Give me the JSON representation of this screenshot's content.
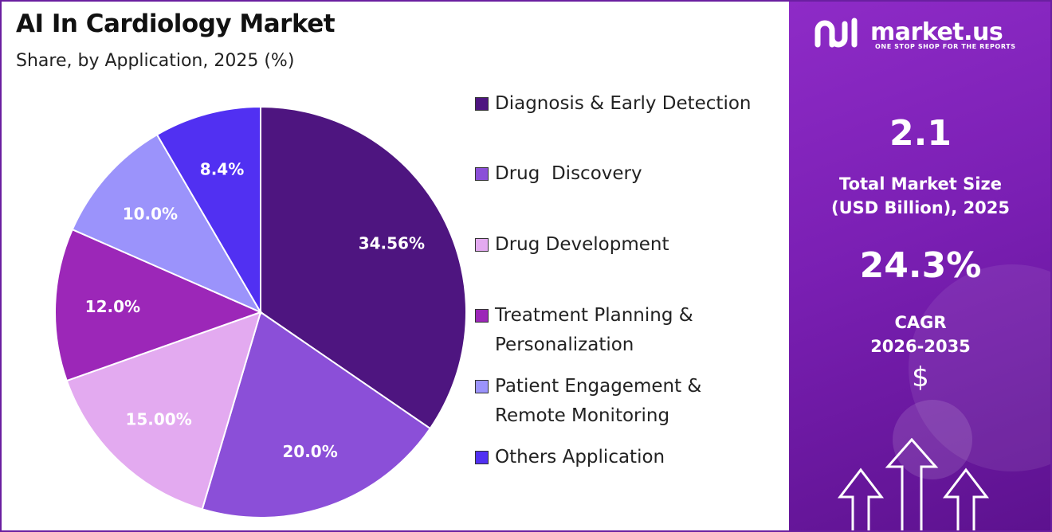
{
  "header": {
    "title": "AI In Cardiology Market",
    "subtitle": "Share, by Application, 2025 (%)"
  },
  "chart_data": {
    "type": "pie",
    "title": "AI In Cardiology Market",
    "subtitle": "Share, by Application, 2025 (%)",
    "slices": [
      {
        "label": "Diagnosis & Early Detection",
        "value": 34.56,
        "display": "34.56%",
        "color": "#4e1580"
      },
      {
        "label": "Drug  Discovery",
        "value": 20.0,
        "display": "20.0%",
        "color": "#8b4fd8"
      },
      {
        "label": "Drug Development",
        "value": 15.0,
        "display": "15.00%",
        "color": "#e3aaf0"
      },
      {
        "label": "Treatment Planning & Personalization",
        "value": 12.0,
        "display": "12.0%",
        "color": "#9c27b8"
      },
      {
        "label": "Patient Engagement & Remote Monitoring",
        "value": 10.0,
        "display": "10.0%",
        "color": "#9b93fb"
      },
      {
        "label": "Others Application",
        "value": 8.4,
        "display": "8.4%",
        "color": "#5130f2"
      }
    ],
    "legend_placement": "right"
  },
  "legend": {
    "items": [
      {
        "text": "Diagnosis & Early Detection",
        "color": "#4e1580"
      },
      {
        "text": "Drug  Discovery",
        "color": "#8b4fd8"
      },
      {
        "text": "Drug Development",
        "color": "#e3aaf0"
      },
      {
        "text": "Treatment Planning &\nPersonalization",
        "color": "#9c27b8"
      },
      {
        "text": "Patient Engagement &\nRemote Monitoring",
        "color": "#9b93fb"
      },
      {
        "text": "Others Application",
        "color": "#5130f2"
      }
    ]
  },
  "sidebar": {
    "brand_name": "market.us",
    "brand_tagline": "ONE STOP SHOP FOR THE REPORTS",
    "market_size_value": "2.1",
    "market_size_label_line1": "Total Market Size",
    "market_size_label_line2": "(USD Billion), 2025",
    "cagr_value": "24.3%",
    "cagr_label_line1": "CAGR",
    "cagr_label_line2": "2026-2035",
    "currency_symbol": "$",
    "accent_color": "#7a1fb3"
  }
}
